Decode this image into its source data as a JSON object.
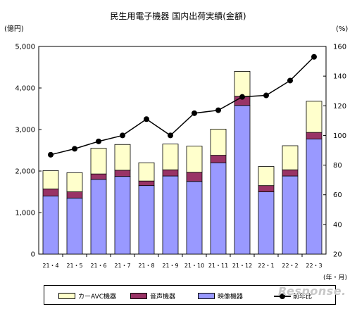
{
  "chart_data": {
    "type": "bar",
    "stacked": true,
    "title": "民生用電子機器 国内出荷実績(金額)",
    "y_left_unit": "(億円)",
    "y_right_unit": "(%)",
    "x_unit": "(年・月)",
    "categories": [
      "21・4",
      "21・5",
      "21・6",
      "21・7",
      "21・8",
      "21・9",
      "21・10",
      "21・11",
      "21・12",
      "22・1",
      "22・2",
      "22・3"
    ],
    "left_axis": {
      "min": 0,
      "max": 5000,
      "ticks": [
        0,
        1000,
        2000,
        3000,
        4000,
        5000
      ],
      "tick_labels": [
        "0",
        "1,000",
        "2,000",
        "3,000",
        "4,000",
        "5,000"
      ]
    },
    "right_axis": {
      "min": 20,
      "max": 160,
      "ticks": [
        20,
        40,
        60,
        80,
        100,
        120,
        140,
        160
      ],
      "tick_labels": [
        "20",
        "40",
        "60",
        "80",
        "100",
        "120",
        "140",
        "160"
      ]
    },
    "series": [
      {
        "name": "映像機器",
        "color": "#9999ff",
        "values": [
          1400,
          1350,
          1800,
          1870,
          1650,
          1880,
          1750,
          2200,
          3580,
          1500,
          1880,
          2770
        ]
      },
      {
        "name": "音声機器",
        "color": "#993366",
        "values": [
          170,
          150,
          130,
          150,
          110,
          150,
          220,
          180,
          220,
          150,
          150,
          160
        ]
      },
      {
        "name": "カーAVC機器",
        "color": "#ffffcc",
        "values": [
          440,
          460,
          620,
          620,
          440,
          620,
          630,
          630,
          600,
          460,
          580,
          750
        ]
      },
      {
        "name": "前年比",
        "type": "line",
        "axis": "right",
        "color": "#000000",
        "values": [
          87,
          91,
          96,
          100,
          111,
          100,
          115,
          117,
          126,
          127,
          137,
          153
        ]
      }
    ],
    "legend_position": "bottom",
    "grid": false
  }
}
